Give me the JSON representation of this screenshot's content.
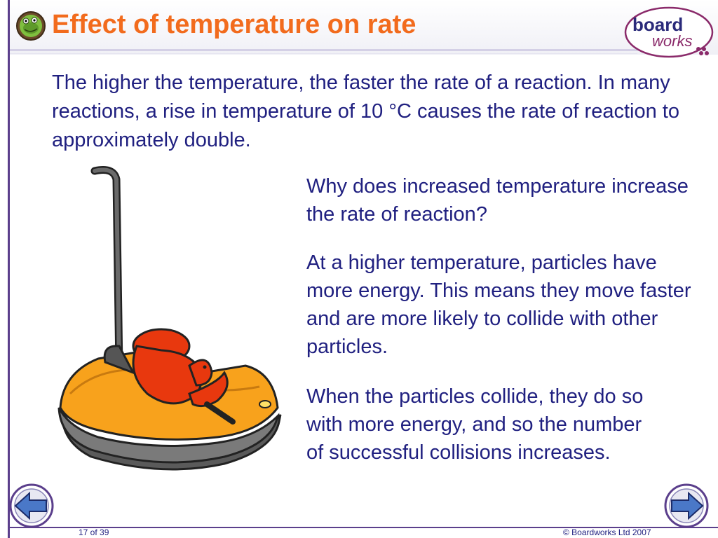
{
  "header": {
    "title": "Effect of temperature on rate",
    "icon": "frog-icon",
    "logo": {
      "line1": "board",
      "line2": "works"
    }
  },
  "content": {
    "intro": "The higher the temperature, the faster the rate of a reaction. In many reactions, a rise in temperature of 10 °C causes the rate of reaction to approximately double.",
    "question": "Why does increased temperature increase the rate of reaction?",
    "answer_1": "At a higher temperature, particles have more energy. This means they move faster and are more likely to collide with other particles.",
    "answer_2": "When the particles collide, they do so with more energy, and so the number of successful collisions increases.",
    "illustration": "bumper-car-illustration"
  },
  "navigation": {
    "prev": "previous-slide-button",
    "next": "next-slide-button"
  },
  "footer": {
    "page": "17 of 39",
    "copyright": "© Boardworks Ltd 2007"
  },
  "colors": {
    "title": "#f26b1d",
    "text": "#202080",
    "accent": "#5b3f8c",
    "car_body": "#f8a21c",
    "character": "#e8380e"
  }
}
